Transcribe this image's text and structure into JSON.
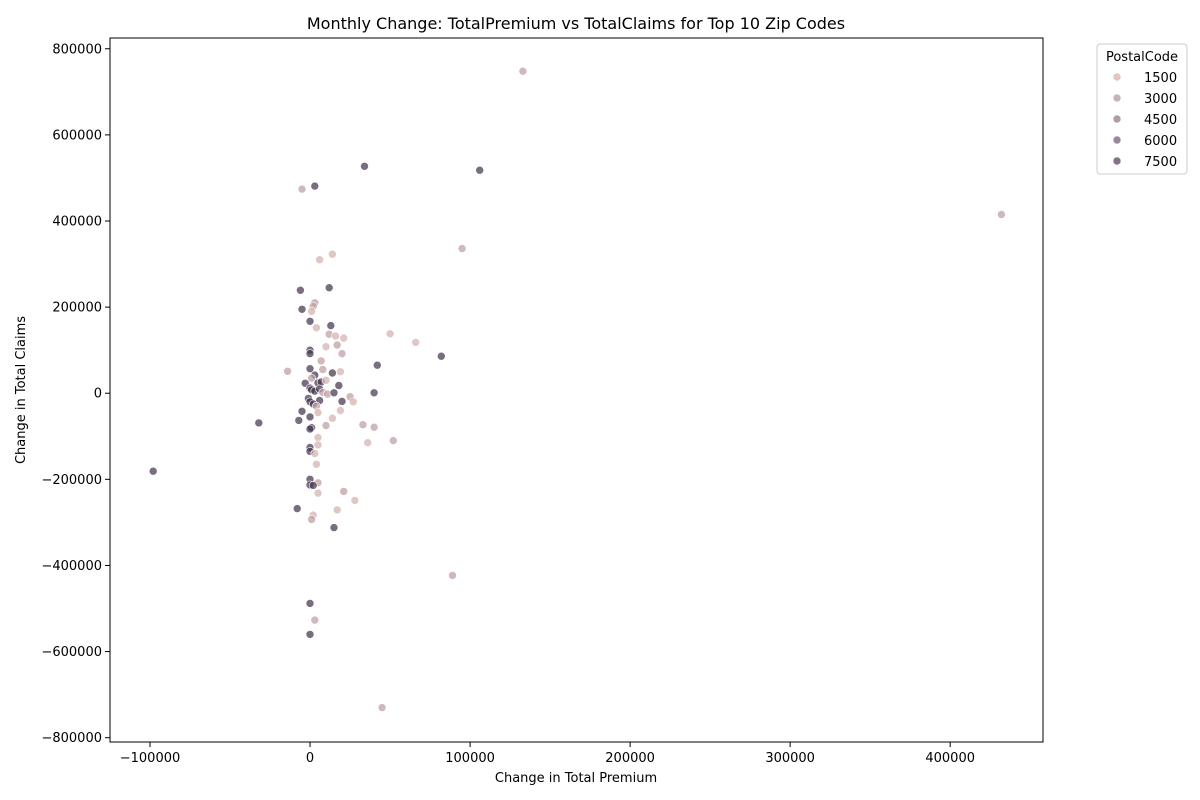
{
  "chart_data": {
    "type": "scatter",
    "title": "Monthly Change: TotalPremium vs TotalClaims for Top 10 Zip Codes",
    "xlabel": "Change in Total Premium",
    "ylabel": "Change in Total Claims",
    "xlim": [
      -125000,
      458000
    ],
    "ylim": [
      -810000,
      825000
    ],
    "x_ticks": [
      -100000,
      0,
      100000,
      200000,
      300000,
      400000
    ],
    "x_tick_labels": [
      "−100000",
      "0",
      "100000",
      "200000",
      "300000",
      "400000"
    ],
    "y_ticks": [
      -800000,
      -600000,
      -400000,
      -200000,
      0,
      200000,
      400000,
      600000,
      800000
    ],
    "y_tick_labels": [
      "−800000",
      "−600000",
      "−400000",
      "−200000",
      "0",
      "200000",
      "400000",
      "600000",
      "800000"
    ],
    "grid": false,
    "hue": {
      "name": "PostalCode",
      "range": [
        0,
        8500
      ],
      "color_low": "#f2cfc5",
      "color_high": "#3a2a48"
    },
    "legend": {
      "title": "PostalCode",
      "placement": "upper-right-outside",
      "entries": [
        {
          "label": "1500",
          "value": 1500
        },
        {
          "label": "3000",
          "value": 3000
        },
        {
          "label": "4500",
          "value": 4500
        },
        {
          "label": "6000",
          "value": 6000
        },
        {
          "label": "7500",
          "value": 7500
        }
      ]
    },
    "points": [
      {
        "x": 133000,
        "y": 748000,
        "hue": 2500
      },
      {
        "x": 34000,
        "y": 527000,
        "hue": 8000
      },
      {
        "x": 106000,
        "y": 518000,
        "hue": 8000
      },
      {
        "x": -5000,
        "y": 474000,
        "hue": 2500
      },
      {
        "x": 3000,
        "y": 481000,
        "hue": 8000
      },
      {
        "x": 432000,
        "y": 415000,
        "hue": 2500
      },
      {
        "x": 95000,
        "y": 336000,
        "hue": 2500
      },
      {
        "x": 14000,
        "y": 323000,
        "hue": 1500
      },
      {
        "x": 6000,
        "y": 310000,
        "hue": 1500
      },
      {
        "x": 12000,
        "y": 245000,
        "hue": 8000
      },
      {
        "x": -6000,
        "y": 239000,
        "hue": 8000
      },
      {
        "x": 3000,
        "y": 210000,
        "hue": 2500
      },
      {
        "x": 2000,
        "y": 202000,
        "hue": 2500
      },
      {
        "x": -5000,
        "y": 195000,
        "hue": 8000
      },
      {
        "x": 1000,
        "y": 190000,
        "hue": 1500
      },
      {
        "x": 0,
        "y": 167000,
        "hue": 8000
      },
      {
        "x": 13000,
        "y": 157000,
        "hue": 8000
      },
      {
        "x": 4000,
        "y": 152000,
        "hue": 1500
      },
      {
        "x": 50000,
        "y": 138000,
        "hue": 1500
      },
      {
        "x": 12000,
        "y": 137000,
        "hue": 2500
      },
      {
        "x": 16000,
        "y": 133000,
        "hue": 1500
      },
      {
        "x": 21000,
        "y": 128000,
        "hue": 1500
      },
      {
        "x": 66000,
        "y": 118000,
        "hue": 1500
      },
      {
        "x": 17000,
        "y": 112000,
        "hue": 2500
      },
      {
        "x": 10000,
        "y": 108000,
        "hue": 1500
      },
      {
        "x": 0,
        "y": 100000,
        "hue": 8000
      },
      {
        "x": 0,
        "y": 92000,
        "hue": 8000
      },
      {
        "x": 20000,
        "y": 92000,
        "hue": 2500
      },
      {
        "x": 82000,
        "y": 86000,
        "hue": 8000
      },
      {
        "x": 7000,
        "y": 75000,
        "hue": 2500
      },
      {
        "x": 42000,
        "y": 65000,
        "hue": 8000
      },
      {
        "x": 0,
        "y": 57000,
        "hue": 8000
      },
      {
        "x": 8000,
        "y": 55000,
        "hue": 2500
      },
      {
        "x": -14000,
        "y": 51000,
        "hue": 2500
      },
      {
        "x": 19000,
        "y": 50000,
        "hue": 1500
      },
      {
        "x": 14000,
        "y": 47000,
        "hue": 8000
      },
      {
        "x": 3000,
        "y": 42000,
        "hue": 8000
      },
      {
        "x": 1000,
        "y": 35000,
        "hue": 2500
      },
      {
        "x": -3000,
        "y": 23000,
        "hue": 8000
      },
      {
        "x": 5000,
        "y": 24000,
        "hue": 8000
      },
      {
        "x": 7000,
        "y": 26000,
        "hue": 8000
      },
      {
        "x": 10000,
        "y": 30000,
        "hue": 1500
      },
      {
        "x": 18000,
        "y": 18000,
        "hue": 8000
      },
      {
        "x": 0,
        "y": 12000,
        "hue": 8000
      },
      {
        "x": 1000,
        "y": 8000,
        "hue": 8000
      },
      {
        "x": 3000,
        "y": 5000,
        "hue": 8000
      },
      {
        "x": 6000,
        "y": 10000,
        "hue": 8000
      },
      {
        "x": 8000,
        "y": 2000,
        "hue": 2500
      },
      {
        "x": 11000,
        "y": -2000,
        "hue": 2500
      },
      {
        "x": 15000,
        "y": 1000,
        "hue": 8000
      },
      {
        "x": 40000,
        "y": 1000,
        "hue": 8000
      },
      {
        "x": 25000,
        "y": -8000,
        "hue": 2500
      },
      {
        "x": 27000,
        "y": -20000,
        "hue": 1500
      },
      {
        "x": 20000,
        "y": -19000,
        "hue": 8000
      },
      {
        "x": 6000,
        "y": -17000,
        "hue": 8000
      },
      {
        "x": -1000,
        "y": -12000,
        "hue": 8000
      },
      {
        "x": 0,
        "y": -20000,
        "hue": 8000
      },
      {
        "x": 2000,
        "y": -25000,
        "hue": 8000
      },
      {
        "x": 4000,
        "y": -30000,
        "hue": 2500
      },
      {
        "x": -5000,
        "y": -42000,
        "hue": 8000
      },
      {
        "x": 19000,
        "y": -40000,
        "hue": 1500
      },
      {
        "x": 5000,
        "y": -45000,
        "hue": 1500
      },
      {
        "x": 0,
        "y": -55000,
        "hue": 8000
      },
      {
        "x": 14000,
        "y": -58000,
        "hue": 1500
      },
      {
        "x": -7000,
        "y": -63000,
        "hue": 8000
      },
      {
        "x": -32000,
        "y": -69000,
        "hue": 8000
      },
      {
        "x": 10000,
        "y": -75000,
        "hue": 2500
      },
      {
        "x": 33000,
        "y": -73000,
        "hue": 2500
      },
      {
        "x": 40000,
        "y": -79000,
        "hue": 2500
      },
      {
        "x": 1000,
        "y": -80000,
        "hue": 8000
      },
      {
        "x": 0,
        "y": -83000,
        "hue": 8000
      },
      {
        "x": 5000,
        "y": -103000,
        "hue": 1500
      },
      {
        "x": 52000,
        "y": -110000,
        "hue": 2500
      },
      {
        "x": 36000,
        "y": -115000,
        "hue": 1500
      },
      {
        "x": 5000,
        "y": -120000,
        "hue": 1500
      },
      {
        "x": 0,
        "y": -126000,
        "hue": 8000
      },
      {
        "x": 0,
        "y": -135000,
        "hue": 8000
      },
      {
        "x": 3000,
        "y": -140000,
        "hue": 1500
      },
      {
        "x": 4000,
        "y": -165000,
        "hue": 1500
      },
      {
        "x": -98000,
        "y": -181000,
        "hue": 8000
      },
      {
        "x": 0,
        "y": -200000,
        "hue": 8000
      },
      {
        "x": 5000,
        "y": -208000,
        "hue": 2500
      },
      {
        "x": 0,
        "y": -213000,
        "hue": 8000
      },
      {
        "x": 2000,
        "y": -214000,
        "hue": 8000
      },
      {
        "x": 21000,
        "y": -228000,
        "hue": 2500
      },
      {
        "x": 5000,
        "y": -232000,
        "hue": 1500
      },
      {
        "x": 28000,
        "y": -249000,
        "hue": 1500
      },
      {
        "x": -8000,
        "y": -268000,
        "hue": 8000
      },
      {
        "x": 17000,
        "y": -271000,
        "hue": 1500
      },
      {
        "x": 2000,
        "y": -283000,
        "hue": 1500
      },
      {
        "x": 1000,
        "y": -293000,
        "hue": 2500
      },
      {
        "x": 15000,
        "y": -312000,
        "hue": 8000
      },
      {
        "x": 89000,
        "y": -423000,
        "hue": 2500
      },
      {
        "x": 0,
        "y": -488000,
        "hue": 8000
      },
      {
        "x": 3000,
        "y": -527000,
        "hue": 2500
      },
      {
        "x": 0,
        "y": -560000,
        "hue": 8000
      },
      {
        "x": 45000,
        "y": -730000,
        "hue": 2500
      }
    ]
  }
}
